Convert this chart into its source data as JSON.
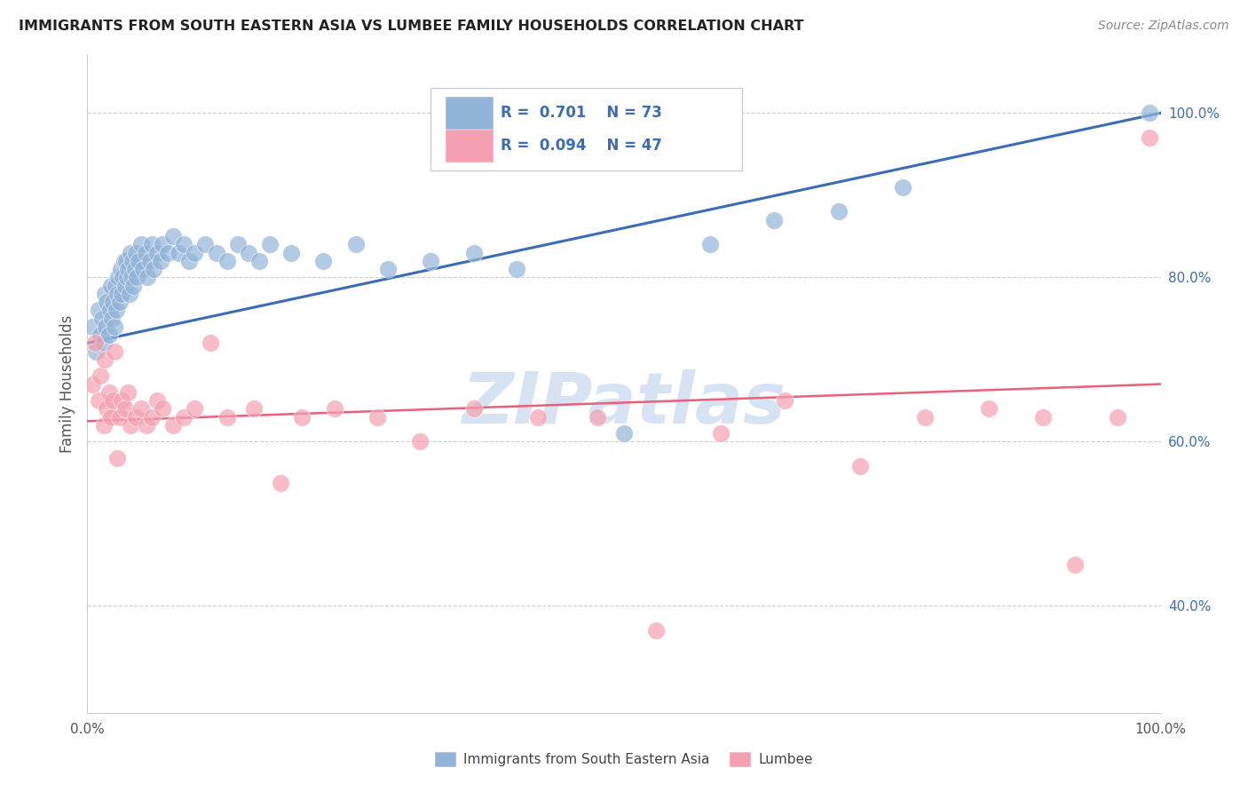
{
  "title": "IMMIGRANTS FROM SOUTH EASTERN ASIA VS LUMBEE FAMILY HOUSEHOLDS CORRELATION CHART",
  "source": "Source: ZipAtlas.com",
  "xlabel_bottom": "Immigrants from South Eastern Asia",
  "xlabel_lumbee": "Lumbee",
  "ylabel": "Family Households",
  "right_yticks": [
    "40.0%",
    "60.0%",
    "80.0%",
    "100.0%"
  ],
  "right_ytick_vals": [
    0.4,
    0.6,
    0.8,
    1.0
  ],
  "xmin": 0.0,
  "xmax": 1.0,
  "ymin": 0.27,
  "ymax": 1.07,
  "blue_R": "0.701",
  "blue_N": "73",
  "pink_R": "0.094",
  "pink_N": "47",
  "blue_color": "#92B4D8",
  "pink_color": "#F4A0B0",
  "blue_line_color": "#3A6DB5",
  "pink_line_color": "#E8607A",
  "watermark": "ZIPatlas",
  "watermark_color": "#C5D8EE",
  "grid_color": "#CCCCCC",
  "title_color": "#222222",
  "blue_scatter_x": [
    0.005,
    0.008,
    0.01,
    0.012,
    0.014,
    0.015,
    0.016,
    0.017,
    0.018,
    0.02,
    0.021,
    0.022,
    0.023,
    0.024,
    0.025,
    0.026,
    0.027,
    0.028,
    0.029,
    0.03,
    0.031,
    0.032,
    0.033,
    0.034,
    0.035,
    0.036,
    0.037,
    0.038,
    0.039,
    0.04,
    0.041,
    0.042,
    0.043,
    0.044,
    0.045,
    0.046,
    0.048,
    0.05,
    0.052,
    0.054,
    0.056,
    0.058,
    0.06,
    0.062,
    0.065,
    0.068,
    0.07,
    0.075,
    0.08,
    0.085,
    0.09,
    0.095,
    0.1,
    0.11,
    0.12,
    0.13,
    0.14,
    0.15,
    0.16,
    0.17,
    0.19,
    0.22,
    0.25,
    0.28,
    0.32,
    0.36,
    0.4,
    0.5,
    0.58,
    0.64,
    0.7,
    0.76,
    0.99
  ],
  "blue_scatter_y": [
    0.74,
    0.71,
    0.76,
    0.73,
    0.75,
    0.72,
    0.78,
    0.74,
    0.77,
    0.73,
    0.76,
    0.79,
    0.75,
    0.77,
    0.74,
    0.79,
    0.76,
    0.78,
    0.8,
    0.77,
    0.81,
    0.78,
    0.8,
    0.82,
    0.79,
    0.82,
    0.8,
    0.81,
    0.78,
    0.83,
    0.8,
    0.82,
    0.79,
    0.81,
    0.83,
    0.8,
    0.82,
    0.84,
    0.81,
    0.83,
    0.8,
    0.82,
    0.84,
    0.81,
    0.83,
    0.82,
    0.84,
    0.83,
    0.85,
    0.83,
    0.84,
    0.82,
    0.83,
    0.84,
    0.83,
    0.82,
    0.84,
    0.83,
    0.82,
    0.84,
    0.83,
    0.82,
    0.84,
    0.81,
    0.82,
    0.83,
    0.81,
    0.61,
    0.84,
    0.87,
    0.88,
    0.91,
    1.0
  ],
  "pink_scatter_x": [
    0.005,
    0.007,
    0.01,
    0.012,
    0.015,
    0.016,
    0.018,
    0.02,
    0.022,
    0.024,
    0.025,
    0.028,
    0.03,
    0.032,
    0.035,
    0.038,
    0.04,
    0.045,
    0.05,
    0.055,
    0.06,
    0.065,
    0.07,
    0.08,
    0.09,
    0.1,
    0.115,
    0.13,
    0.155,
    0.18,
    0.2,
    0.23,
    0.27,
    0.31,
    0.36,
    0.42,
    0.475,
    0.53,
    0.59,
    0.65,
    0.72,
    0.78,
    0.84,
    0.89,
    0.92,
    0.96,
    0.99
  ],
  "pink_scatter_y": [
    0.67,
    0.72,
    0.65,
    0.68,
    0.62,
    0.7,
    0.64,
    0.66,
    0.63,
    0.65,
    0.71,
    0.58,
    0.63,
    0.65,
    0.64,
    0.66,
    0.62,
    0.63,
    0.64,
    0.62,
    0.63,
    0.65,
    0.64,
    0.62,
    0.63,
    0.64,
    0.72,
    0.63,
    0.64,
    0.55,
    0.63,
    0.64,
    0.63,
    0.6,
    0.64,
    0.63,
    0.63,
    0.37,
    0.61,
    0.65,
    0.57,
    0.63,
    0.64,
    0.63,
    0.45,
    0.63,
    0.97
  ],
  "blue_trend_x": [
    0.0,
    1.0
  ],
  "blue_trend_y": [
    0.72,
    1.0
  ],
  "pink_trend_x": [
    0.0,
    1.0
  ],
  "pink_trend_y": [
    0.625,
    0.67
  ]
}
